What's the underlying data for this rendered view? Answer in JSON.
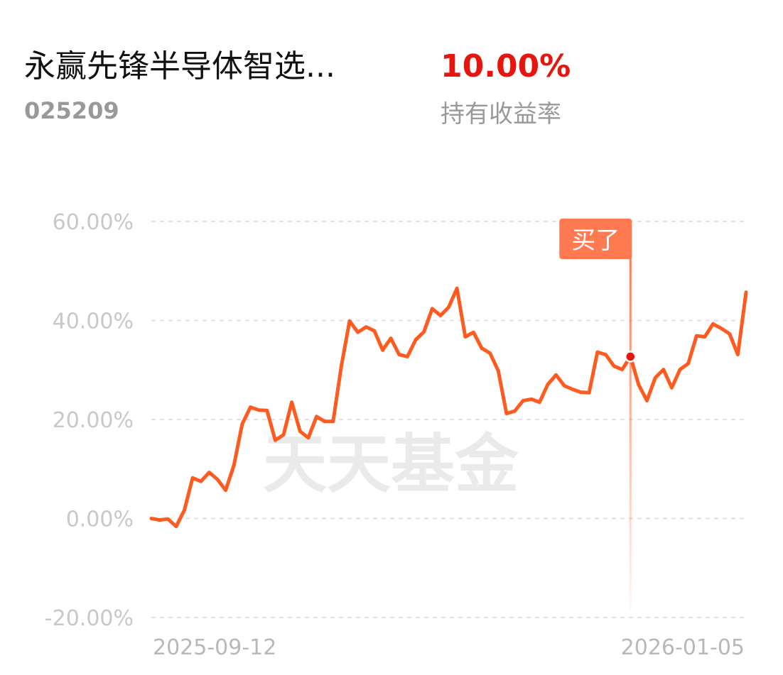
{
  "header": {
    "fund_name": "永赢先锋半导体智选...",
    "fund_code": "025209",
    "return_value": "10.00%",
    "return_label": "持有收益率"
  },
  "watermark": "天天基金",
  "chart_data": {
    "type": "line",
    "color": "#ff5a1f",
    "grid": true,
    "ylim": [
      -20,
      60
    ],
    "yticks": [
      {
        "value": -20,
        "label": "-20.00%"
      },
      {
        "value": 0,
        "label": "0.00%"
      },
      {
        "value": 20,
        "label": "20.00%"
      },
      {
        "value": 40,
        "label": "40.00%"
      },
      {
        "value": 60,
        "label": "60.00%"
      }
    ],
    "categories": [
      "2025-09-12",
      null,
      null,
      null,
      null,
      null,
      null,
      null,
      null,
      null,
      null,
      null,
      null,
      null,
      null,
      null,
      null,
      null,
      null,
      null,
      null,
      null,
      null,
      null,
      null,
      null,
      null,
      null,
      null,
      null,
      null,
      null,
      null,
      null,
      null,
      null,
      null,
      null,
      null,
      null,
      null,
      null,
      null,
      null,
      null,
      null,
      null,
      null,
      null,
      null,
      null,
      null,
      null,
      null,
      null,
      null,
      null,
      null,
      null,
      null,
      null,
      null,
      null,
      null,
      null,
      null,
      null,
      null,
      null,
      null,
      null,
      null,
      "2026-01-05"
    ],
    "values": [
      0,
      -0.3,
      -0.1,
      -1.6,
      1.7,
      8.2,
      7.5,
      9.3,
      7.9,
      5.7,
      10.8,
      19.1,
      22.5,
      21.9,
      21.8,
      15.8,
      16.9,
      23.5,
      17.6,
      16.3,
      20.6,
      19.6,
      19.6,
      30.8,
      39.9,
      37.6,
      38.7,
      37.9,
      34.0,
      36.4,
      33.1,
      32.7,
      36.1,
      37.7,
      42.4,
      41.0,
      42.7,
      46.5,
      36.7,
      37.6,
      34.4,
      33.4,
      29.8,
      21.2,
      21.7,
      23.8,
      24.1,
      23.5,
      27.1,
      29.0,
      26.8,
      26.1,
      25.5,
      25.4,
      33.6,
      33.1,
      30.8,
      30.1,
      32.7,
      27.0,
      23.8,
      28.4,
      30.1,
      26.4,
      30.1,
      31.3,
      36.9,
      36.7,
      39.3,
      38.4,
      37.3,
      33.1,
      45.7
    ],
    "annotation": {
      "text": "买了",
      "index": 58
    }
  }
}
